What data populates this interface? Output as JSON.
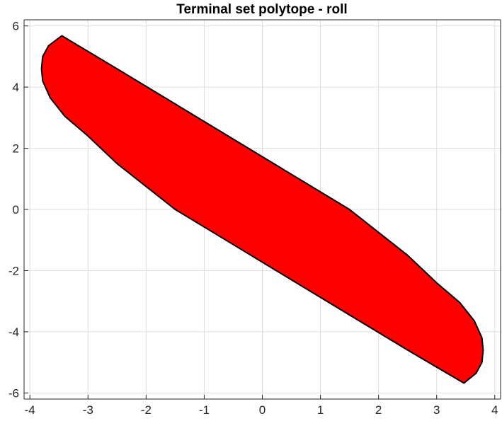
{
  "chart_data": {
    "type": "area",
    "title": "Terminal set polytope - roll",
    "xlabel": "",
    "ylabel": "",
    "xlim": [
      -4.1,
      4.1
    ],
    "ylim": [
      -6.2,
      6.2
    ],
    "xticks": [
      -4,
      -3,
      -2,
      -1,
      0,
      1,
      2,
      3,
      4
    ],
    "yticks": [
      -6,
      -4,
      -2,
      0,
      2,
      4,
      6
    ],
    "xtick_labels": [
      "-4",
      "-3",
      "-2",
      "-1",
      "0",
      "1",
      "2",
      "3",
      "4"
    ],
    "ytick_labels": [
      "-6",
      "-4",
      "-2",
      "0",
      "2",
      "4",
      "6"
    ],
    "grid": true,
    "box": true,
    "series": [
      {
        "fill_color": "#ff0000",
        "edge_color": "#000000",
        "vertices": [
          [
            -3.45,
            5.68
          ],
          [
            -2.5,
            4.6
          ],
          [
            -1.5,
            3.45
          ],
          [
            -0.5,
            2.3
          ],
          [
            0.5,
            1.15
          ],
          [
            1.5,
            0.0
          ],
          [
            2.5,
            -1.5
          ],
          [
            3.0,
            -2.4
          ],
          [
            3.4,
            -3.05
          ],
          [
            3.65,
            -3.65
          ],
          [
            3.78,
            -4.2
          ],
          [
            3.8,
            -4.6
          ],
          [
            3.78,
            -5.0
          ],
          [
            3.68,
            -5.35
          ],
          [
            3.47,
            -5.68
          ],
          [
            2.5,
            -4.6
          ],
          [
            1.5,
            -3.45
          ],
          [
            0.5,
            -2.3
          ],
          [
            -0.5,
            -1.15
          ],
          [
            -1.5,
            0.0
          ],
          [
            -2.5,
            1.5
          ],
          [
            -3.0,
            2.4
          ],
          [
            -3.4,
            3.05
          ],
          [
            -3.65,
            3.65
          ],
          [
            -3.78,
            4.2
          ],
          [
            -3.8,
            4.6
          ],
          [
            -3.78,
            5.0
          ],
          [
            -3.68,
            5.35
          ]
        ]
      }
    ]
  }
}
